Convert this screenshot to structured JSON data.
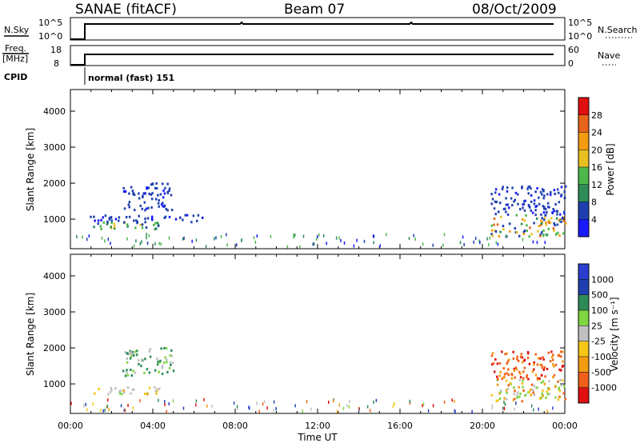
{
  "header": {
    "station": "SANAE (fitACF)",
    "beam": "Beam 07",
    "date": "08/Oct/2009"
  },
  "top_panels": {
    "nsky": {
      "label": "N.Sky",
      "ticks": [
        "10^5",
        "10^0"
      ]
    },
    "nsearch": {
      "label": "N.Search",
      "ticks": [
        "10^5",
        "10^0"
      ]
    },
    "freq": {
      "label_line1": "Freq.",
      "label_line2": "[MHz]",
      "ticks": [
        "18",
        "8"
      ]
    },
    "nave": {
      "label": "Nave",
      "ticks": [
        "60",
        "0"
      ]
    },
    "cpid": {
      "label": "CPID",
      "mode_text": "normal (fast) 151"
    }
  },
  "colors": {
    "power_scale": [
      "#1a1aff",
      "#1f3fb0",
      "#2e8b57",
      "#4cb84c",
      "#e8c020",
      "#f39c12",
      "#e8651a",
      "#e01010"
    ],
    "velocity_scale": [
      "#e01010",
      "#f0601a",
      "#f39c12",
      "#f5c518",
      "#c0c0c0",
      "#7fd640",
      "#2e8b57",
      "#1f3fb0",
      "#2a3fd0"
    ]
  },
  "chart_data": [
    {
      "type": "heatmap",
      "name": "power",
      "ylabel": "Slant Range [km]",
      "y_ticks": [
        "1000",
        "2000",
        "3000",
        "4000"
      ],
      "ylim": [
        180,
        4600
      ],
      "xlim": [
        0,
        24
      ],
      "colorbar": {
        "label": "Power [dB]",
        "ticks": [
          "4",
          "8",
          "12",
          "16",
          "20",
          "24",
          "28"
        ],
        "range": [
          0,
          32
        ]
      },
      "regions": [
        {
          "t0": 0.9,
          "t1": 4.5,
          "r0": 700,
          "r1": 900,
          "level": "mid"
        },
        {
          "t0": 0.8,
          "t1": 6.4,
          "r0": 900,
          "r1": 1100,
          "level": "low"
        },
        {
          "t0": 2.5,
          "t1": 5.0,
          "r0": 1200,
          "r1": 2000,
          "level": "low"
        },
        {
          "t0": 20.4,
          "t1": 24.0,
          "r0": 500,
          "r1": 1100,
          "level": "high"
        },
        {
          "t0": 20.4,
          "t1": 24.0,
          "r0": 1100,
          "r1": 1900,
          "level": "low"
        }
      ]
    },
    {
      "type": "heatmap",
      "name": "velocity",
      "ylabel": "Slant Range [km]",
      "y_ticks": [
        "1000",
        "2000",
        "3000",
        "4000"
      ],
      "ylim": [
        180,
        4600
      ],
      "xlim": [
        0,
        24
      ],
      "xlabel": "Time UT",
      "x_ticks": [
        "00:00",
        "04:00",
        "08:00",
        "12:00",
        "16:00",
        "20:00",
        "00:00"
      ],
      "colorbar": {
        "label": "Velocity [m s⁻¹]",
        "ticks": [
          "1000",
          "500",
          "100",
          "25",
          "-25",
          "-100",
          "-500",
          "-1000"
        ]
      },
      "regions": [
        {
          "t0": 0.9,
          "t1": 4.5,
          "r0": 700,
          "r1": 900,
          "level": "orange-grey"
        },
        {
          "t0": 2.5,
          "t1": 5.0,
          "r0": 1200,
          "r1": 2000,
          "level": "green"
        },
        {
          "t0": 20.4,
          "t1": 24.0,
          "r0": 500,
          "r1": 1100,
          "level": "orange-green"
        },
        {
          "t0": 20.4,
          "t1": 24.0,
          "r0": 1100,
          "r1": 1900,
          "level": "orange-red"
        }
      ]
    }
  ]
}
